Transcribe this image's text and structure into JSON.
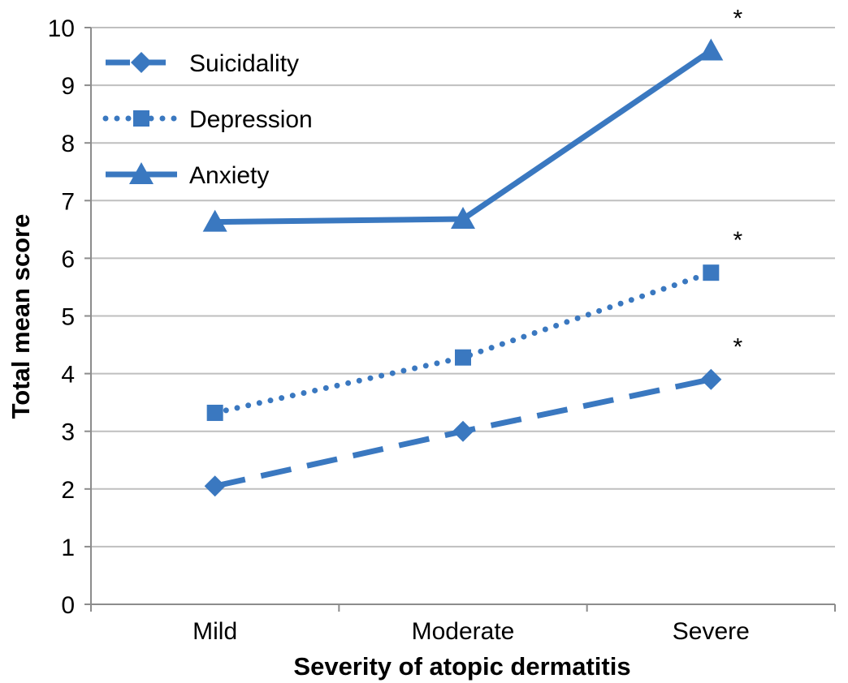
{
  "chart_data": {
    "type": "line",
    "title": "",
    "xlabel": "Severity of atopic dermatitis",
    "ylabel": "Total mean score",
    "categories": [
      "Mild",
      "Moderate",
      "Severe"
    ],
    "ylim": [
      0,
      10
    ],
    "y_ticks": [
      0,
      1,
      2,
      3,
      4,
      5,
      6,
      7,
      8,
      9,
      10
    ],
    "y_tick_labels": [
      "0",
      "1",
      "2",
      "3",
      "4",
      "5",
      "6",
      "7",
      "8",
      "9",
      "10"
    ],
    "grid": true,
    "legend_position": "top-left",
    "series": [
      {
        "name": "Suicidality",
        "values": [
          2.05,
          3.0,
          3.9
        ],
        "marker": "diamond",
        "line_style": "dashed",
        "color": "#3A78C0"
      },
      {
        "name": "Depression",
        "values": [
          3.32,
          4.28,
          5.75
        ],
        "marker": "square",
        "line_style": "dotted",
        "color": "#3A78C0"
      },
      {
        "name": "Anxiety",
        "values": [
          6.63,
          6.68,
          9.6
        ],
        "marker": "triangle",
        "line_style": "solid",
        "color": "#3A78C0"
      }
    ],
    "annotations": [
      {
        "text": "*",
        "series": "Anxiety",
        "category": "Severe"
      },
      {
        "text": "*",
        "series": "Depression",
        "category": "Severe"
      },
      {
        "text": "*",
        "series": "Suicidality",
        "category": "Severe"
      }
    ]
  },
  "colors": {
    "series": "#3A78C0",
    "grid": "#BFBFBF",
    "axis": "#8C8C8C"
  }
}
